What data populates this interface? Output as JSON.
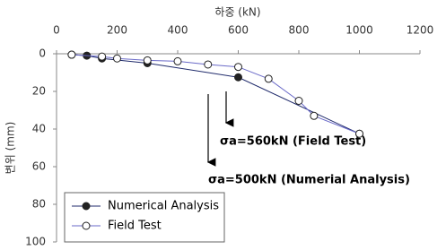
{
  "chart_data": {
    "type": "line",
    "x_label": "하중 (kN)",
    "y_label": "변위 (mm)",
    "xlim": [
      0,
      1200
    ],
    "xticks": [
      0,
      200,
      400,
      600,
      800,
      1000,
      1200
    ],
    "ylim": [
      0,
      100
    ],
    "yticks": [
      0,
      20,
      40,
      60,
      80,
      100
    ],
    "y_inverted": true,
    "x_axis_position": "top",
    "legend_position": "lower left",
    "series": [
      {
        "name": "Numerical Analysis",
        "color": "#1f2a6b",
        "marker": "filled",
        "x": [
          50,
          100,
          150,
          300,
          600,
          1000
        ],
        "values": [
          0.5,
          1,
          2.5,
          5,
          12.5,
          42.5
        ]
      },
      {
        "name": "Field Test",
        "color": "#6a6ac8",
        "marker": "open",
        "x": [
          50,
          150,
          200,
          300,
          400,
          500,
          600,
          700,
          800,
          850,
          1000
        ],
        "values": [
          0.5,
          1.5,
          2.5,
          3.5,
          4,
          5.7,
          7,
          13.3,
          25,
          33,
          42.5
        ]
      }
    ],
    "annotations": [
      "σa=560kN (Field Test)",
      "σa=500kN (Numerial Analysis)"
    ]
  }
}
